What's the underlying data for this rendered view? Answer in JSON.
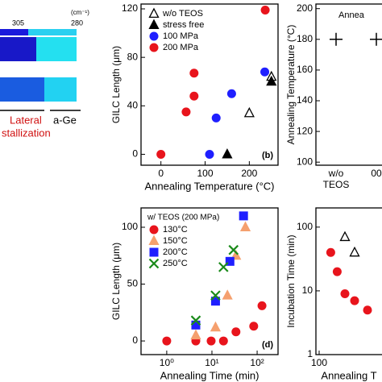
{
  "chart_data": [
    {
      "type": "colorbar",
      "ticks": [
        305,
        280
      ],
      "unit": "(cm⁻¹)",
      "annotations": [
        "Lateral",
        "stallization",
        "a-Ge"
      ]
    },
    {
      "type": "scatter",
      "panel_label": "(b)",
      "xlabel": "Annealing Temperature (°C)",
      "ylabel": "GILC Length (μm)",
      "xlim": [
        -45,
        265
      ],
      "ylim": [
        -9,
        124
      ],
      "xticks": [
        0,
        100,
        200
      ],
      "yticks": [
        0,
        40,
        80,
        120
      ],
      "legend": "upper left",
      "series": [
        {
          "name": "w/o TEOS",
          "color": "#000000",
          "marker": "triangle-open",
          "x": [
            200,
            250
          ],
          "values": [
            34,
            64
          ]
        },
        {
          "name": "stress free",
          "color": "#000000",
          "marker": "triangle",
          "x": [
            150,
            250
          ],
          "values": [
            0,
            60
          ]
        },
        {
          "name": "100 MPa",
          "color": "#1f1fff",
          "marker": "circle",
          "x": [
            110,
            125,
            160,
            235
          ],
          "values": [
            0,
            30,
            50,
            68
          ]
        },
        {
          "name": "200 MPa",
          "color": "#e8141c",
          "marker": "circle",
          "x": [
            0,
            57,
            75,
            75,
            236
          ],
          "values": [
            0,
            35,
            48,
            67,
            119
          ]
        }
      ]
    },
    {
      "type": "scatter",
      "panel_label": "(d)",
      "legend_title": "w/ TEOS (200 MPa)",
      "xlabel": "Annealing Time (min)",
      "ylabel": "GILC Length (μm)",
      "xscale": "log",
      "xlim": [
        0.27,
        290
      ],
      "ylim": [
        -12,
        117
      ],
      "xticks": [
        {
          "value": 1,
          "label": "10⁰"
        },
        {
          "value": 10,
          "label": "10¹"
        },
        {
          "value": 100,
          "label": "10²"
        }
      ],
      "yticks": [
        0,
        50,
        100
      ],
      "legend": "upper left",
      "series": [
        {
          "name": "130°C",
          "color": "#e8141c",
          "marker": "circle",
          "x": [
            1,
            4.4,
            9.6,
            18,
            34,
            84,
            128
          ],
          "values": [
            0,
            0,
            0,
            0,
            8,
            13,
            31
          ]
        },
        {
          "name": "150°C",
          "color": "#f5a06e",
          "marker": "triangle",
          "x": [
            4.4,
            12,
            22,
            34,
            55
          ],
          "values": [
            5,
            12,
            40,
            75,
            100
          ]
        },
        {
          "name": "200°C",
          "color": "#1f1fff",
          "marker": "square",
          "x": [
            4.4,
            12,
            25,
            50
          ],
          "values": [
            14,
            35,
            70,
            110
          ]
        },
        {
          "name": "250°C",
          "color": "#1a8a1a",
          "marker": "x",
          "x": [
            4.4,
            12,
            18,
            30
          ],
          "values": [
            18,
            40,
            65,
            80
          ]
        }
      ]
    },
    {
      "type": "scatter",
      "title": "Annea",
      "ylabel": "Annealing Temperature (°C)",
      "categories": [
        "w/o",
        "00"
      ],
      "category_sublabel": "TEOS",
      "ylim": [
        98,
        203
      ],
      "yticks": [
        100,
        120,
        140,
        160,
        180,
        200
      ],
      "series": [
        {
          "color": "#000000",
          "marker": "plus",
          "values": [
            180,
            180
          ]
        }
      ]
    },
    {
      "type": "scatter",
      "xlabel": "Annealing T",
      "ylabel": "Incubation Time (min)",
      "yscale": "log",
      "xlim": [
        95,
        205
      ],
      "xticks": [
        100
      ],
      "ylim": [
        1,
        200
      ],
      "yticks": [
        1,
        10,
        100
      ],
      "series": [
        {
          "color": "#e8141c",
          "marker": "circle",
          "x": [
            118,
            128,
            140,
            155,
            175
          ],
          "values": [
            40,
            20,
            9,
            7,
            5
          ]
        },
        {
          "color": "#000000",
          "marker": "triangle-open",
          "x": [
            140,
            155
          ],
          "values": [
            70,
            40
          ]
        }
      ]
    }
  ]
}
